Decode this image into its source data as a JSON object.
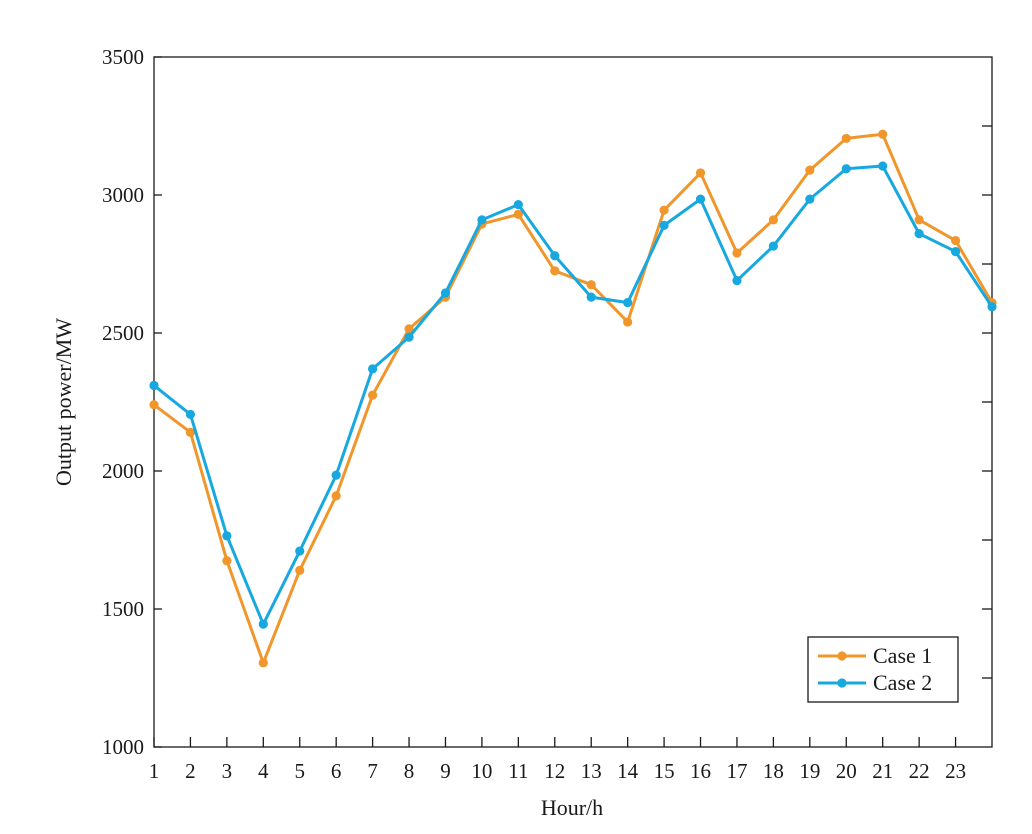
{
  "chart_data": {
    "type": "line",
    "title": "",
    "xlabel": "Hour/h",
    "ylabel": "Output power/MW",
    "xlim": [
      1,
      24
    ],
    "ylim": [
      1000,
      3500
    ],
    "xticks": [
      1,
      2,
      3,
      4,
      5,
      6,
      7,
      8,
      9,
      10,
      11,
      12,
      13,
      14,
      15,
      16,
      17,
      18,
      19,
      20,
      21,
      22,
      23
    ],
    "yticks": [
      1000,
      1500,
      2000,
      2500,
      3000,
      3500
    ],
    "x": [
      1,
      2,
      3,
      4,
      5,
      6,
      7,
      8,
      9,
      10,
      11,
      12,
      13,
      14,
      15,
      16,
      17,
      18,
      19,
      20,
      21,
      22,
      23,
      24
    ],
    "grid": false,
    "legend_position": "bottom-right",
    "series": [
      {
        "name": "Case 1",
        "color": "#F0962A",
        "values": [
          2240,
          2140,
          1675,
          1305,
          1640,
          1910,
          2275,
          2515,
          2630,
          2895,
          2930,
          2725,
          2675,
          2540,
          2945,
          3080,
          2790,
          2910,
          3090,
          3205,
          3220,
          2910,
          2835,
          2610
        ]
      },
      {
        "name": "Case 2",
        "color": "#17A8E0",
        "values": [
          2310,
          2205,
          1765,
          1445,
          1710,
          1985,
          2370,
          2485,
          2645,
          2910,
          2965,
          2780,
          2630,
          2610,
          2890,
          2985,
          2690,
          2815,
          2985,
          3095,
          3105,
          2860,
          2795,
          2595
        ]
      }
    ]
  }
}
